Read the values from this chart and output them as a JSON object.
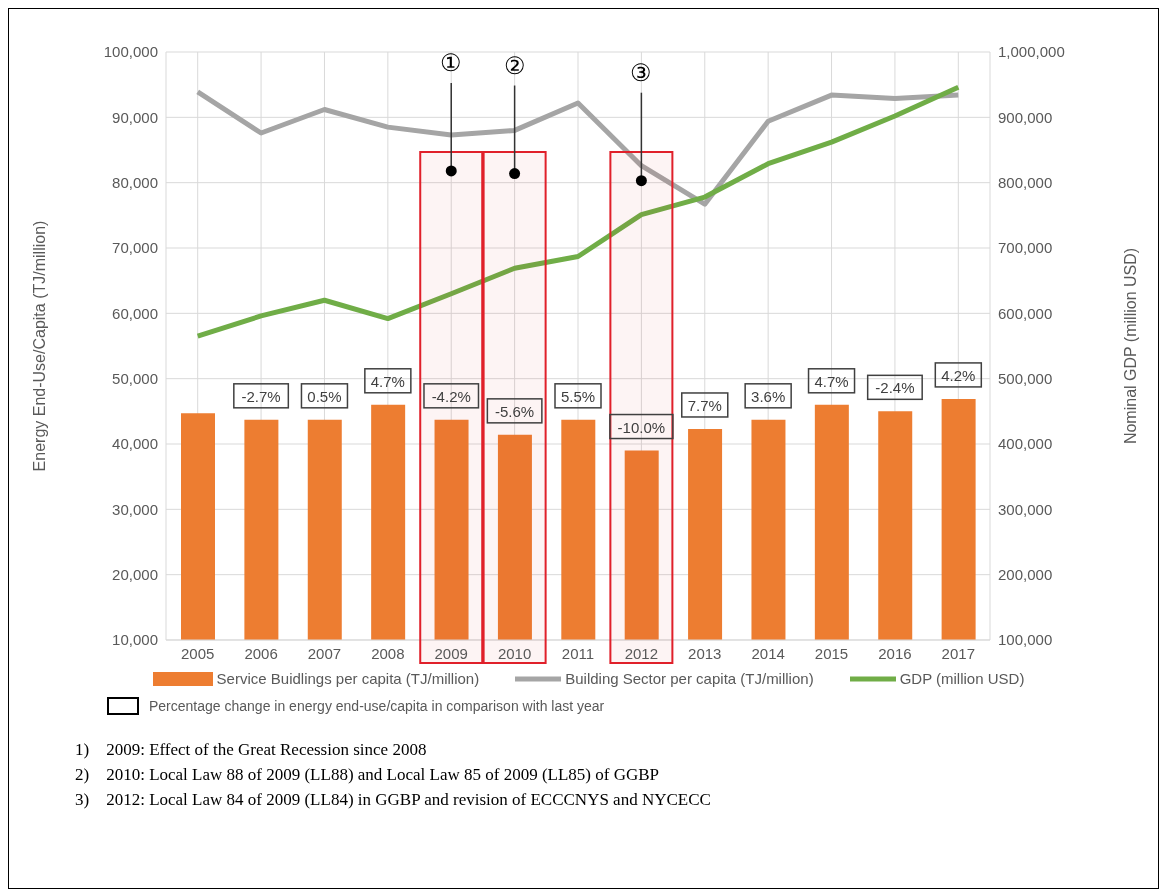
{
  "chart_data": {
    "type": "bar",
    "categories": [
      "2005",
      "2006",
      "2007",
      "2008",
      "2009",
      "2010",
      "2011",
      "2012",
      "2013",
      "2014",
      "2015",
      "2016",
      "2017"
    ],
    "series": [
      {
        "name": "Service Buidlings per capita (TJ/million)",
        "color": "#ed7d31",
        "values": [
          44700,
          43700,
          43700,
          46000,
          43700,
          41400,
          43700,
          39000,
          42300,
          43700,
          46000,
          45000,
          46900
        ]
      },
      {
        "type": "line",
        "name": "Building Sector per capita (TJ/million)",
        "color": "#a5a5a5",
        "values": [
          93900,
          87600,
          91200,
          88500,
          87300,
          88000,
          92200,
          82600,
          76700,
          89400,
          93400,
          92900,
          93400
        ]
      },
      {
        "type": "line",
        "name": "GDP (million USD)",
        "color": "#70ad47",
        "axis": "y2",
        "values": [
          565000,
          596000,
          620000,
          592000,
          630000,
          669000,
          687000,
          751000,
          778000,
          829000,
          862000,
          902000,
          946000
        ]
      }
    ],
    "ylabel": "Energy End-Use/Capita (TJ/million)",
    "y2label": "Nominal GDP (million USD)",
    "ylim": [
      10000,
      100000
    ],
    "yticks": [
      {
        "value": 10000,
        "label": "10,000"
      },
      {
        "value": 20000,
        "label": "20,000"
      },
      {
        "value": 30000,
        "label": "30,000"
      },
      {
        "value": 40000,
        "label": "40,000"
      },
      {
        "value": 50000,
        "label": "50,000"
      },
      {
        "value": 60000,
        "label": "60,000"
      },
      {
        "value": 70000,
        "label": "70,000"
      },
      {
        "value": 80000,
        "label": "80,000"
      },
      {
        "value": 90000,
        "label": "90,000"
      },
      {
        "value": 100000,
        "label": "100,000"
      }
    ],
    "y2lim": [
      100000,
      1000000
    ],
    "y2ticks": [
      {
        "value": 100000,
        "label": "100,000"
      },
      {
        "value": 200000,
        "label": "200,000"
      },
      {
        "value": 300000,
        "label": "300,000"
      },
      {
        "value": 400000,
        "label": "400,000"
      },
      {
        "value": 500000,
        "label": "500,000"
      },
      {
        "value": 600000,
        "label": "600,000"
      },
      {
        "value": 700000,
        "label": "700,000"
      },
      {
        "value": 800000,
        "label": "800,000"
      },
      {
        "value": 900000,
        "label": "900,000"
      },
      {
        "value": 1000000,
        "label": "1,000,000"
      }
    ],
    "grid": true,
    "legend": "bottom",
    "marker": "none",
    "bands": [
      {
        "axis": "x",
        "from": "2009",
        "to": "2009",
        "color": "#e0202a"
      },
      {
        "axis": "x",
        "from": "2010",
        "to": "2010",
        "color": "#e0202a"
      },
      {
        "axis": "x",
        "from": "2012",
        "to": "2012",
        "color": "#e0202a"
      }
    ],
    "annotations": [
      {
        "text": "-2.7%",
        "x": "2006",
        "y": 43700
      },
      {
        "text": "0.5%",
        "x": "2007",
        "y": 43700
      },
      {
        "text": "4.7%",
        "x": "2008",
        "y": 46000
      },
      {
        "text": "-4.2%",
        "x": "2009",
        "y": 43700
      },
      {
        "text": "-5.6%",
        "x": "2010",
        "y": 41400
      },
      {
        "text": "5.5%",
        "x": "2011",
        "y": 43700
      },
      {
        "text": "-10.0%",
        "x": "2012",
        "y": 39000
      },
      {
        "text": "7.7%",
        "x": "2013",
        "y": 42300
      },
      {
        "text": "3.6%",
        "x": "2014",
        "y": 43700
      },
      {
        "text": "4.7%",
        "x": "2015",
        "y": 46000
      },
      {
        "text": "-2.4%",
        "x": "2016",
        "y": 45000
      },
      {
        "text": "4.2%",
        "x": "2017",
        "y": 46900
      },
      {
        "text": "①",
        "x": "2009",
        "y": 81800
      },
      {
        "text": "②",
        "x": "2010",
        "y": 81400
      },
      {
        "text": "③",
        "x": "2012",
        "y": 80300
      },
      "Percentage change in energy end-use/capita in comparison with last year",
      "1)    2009: Effect of the Great Recession since 2008",
      "2)    2010: Local Law 88 of 2009 (LL88) and Local Law 85 of 2009 (LL85) of GGBP",
      "3)    2012: Local Law 84 of 2009 (LL84) in GGBP and revision of ECCCNYS and NYCECC"
    ]
  }
}
